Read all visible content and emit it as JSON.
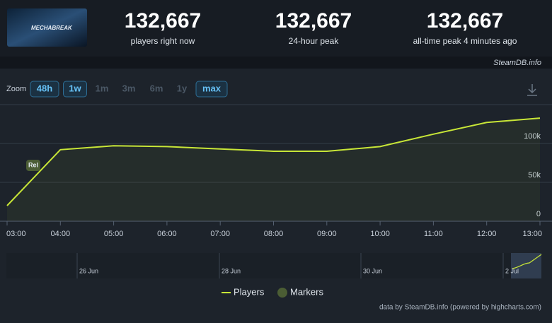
{
  "header": {
    "logo_text": "MECHABREAK",
    "stats": [
      {
        "value": "132,667",
        "label": "players right now"
      },
      {
        "value": "132,667",
        "label": "24-hour peak"
      },
      {
        "value": "132,667",
        "label": "all-time peak 4 minutes ago"
      }
    ],
    "site": "SteamDB.info"
  },
  "zoom": {
    "label": "Zoom",
    "buttons": [
      {
        "text": "48h",
        "selected": true
      },
      {
        "text": "1w",
        "selected": true
      },
      {
        "text": "1m",
        "selected": false
      },
      {
        "text": "3m",
        "selected": false
      },
      {
        "text": "6m",
        "selected": false
      },
      {
        "text": "1y",
        "selected": false
      },
      {
        "text": "max",
        "selected": true
      }
    ]
  },
  "chart_data": {
    "type": "line",
    "categories": [
      "03:00",
      "04:00",
      "05:00",
      "06:00",
      "07:00",
      "08:00",
      "09:00",
      "10:00",
      "11:00",
      "12:00",
      "13:00"
    ],
    "series": [
      {
        "name": "Players",
        "color": "#c8e637",
        "values": [
          20000,
          92000,
          97000,
          96000,
          93000,
          90000,
          90000,
          96000,
          112000,
          127000,
          132667
        ]
      }
    ],
    "ylim": [
      0,
      150000
    ],
    "yticks": [
      0,
      {
        "value": 50000,
        "label": "50k"
      },
      {
        "value": 100000,
        "label": "100k"
      }
    ],
    "grid": true,
    "markers": {
      "name": "Markers",
      "color": "#4b5d34",
      "items": [
        {
          "label": "Rel"
        }
      ]
    },
    "navigator": {
      "labels": [
        "26 Jun",
        "28 Jun",
        "30 Jun",
        "2 Jul"
      ]
    },
    "credits": "data by SteamDB.info (powered by highcharts.com)"
  }
}
